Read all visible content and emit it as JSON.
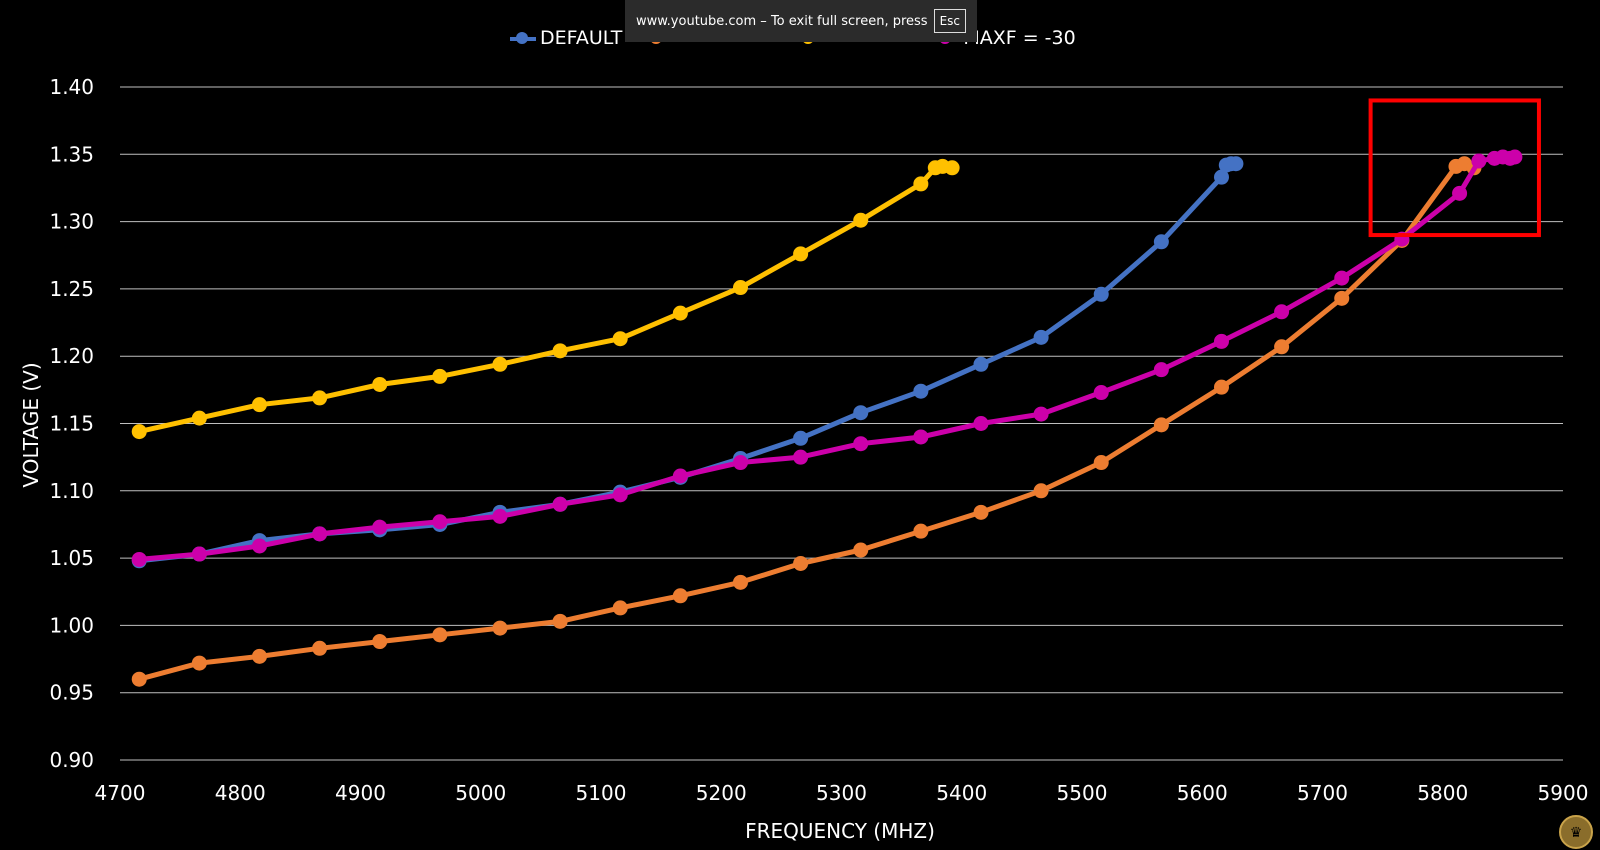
{
  "overlay": {
    "message": "www.youtube.com – To exit full screen, press",
    "key": "Esc"
  },
  "chart_data": {
    "type": "line",
    "title": "",
    "xlabel": "FREQUENCY (MHZ)",
    "ylabel": "VOLTAGE (V)",
    "xlim": [
      4700,
      5900
    ],
    "ylim": [
      0.9,
      1.4
    ],
    "xticks": [
      "4700",
      "4800",
      "4900",
      "5000",
      "5100",
      "5200",
      "5300",
      "5400",
      "5500",
      "5600",
      "5700",
      "5800",
      "5900"
    ],
    "yticks": [
      "0.90",
      "0.95",
      "1.00",
      "1.05",
      "1.10",
      "1.15",
      "1.20",
      "1.25",
      "1.30",
      "1.35",
      "1.40"
    ],
    "grid": "horizontal",
    "legend_position": "top-center",
    "highlight_box": {
      "x": [
        5740,
        5880
      ],
      "y": [
        1.29,
        1.39
      ],
      "color": "#ff0000"
    },
    "series": [
      {
        "name": "DEFAULT",
        "color": "#4472c4",
        "x": [
          4716,
          4766,
          4816,
          4866,
          4916,
          4966,
          5016,
          5066,
          5116,
          5166,
          5216,
          5266,
          5316,
          5366,
          5416,
          5466,
          5516,
          5566,
          5616,
          5620,
          5624,
          5628
        ],
        "y": [
          1.048,
          1.053,
          1.063,
          1.068,
          1.071,
          1.075,
          1.084,
          1.09,
          1.099,
          1.11,
          1.124,
          1.139,
          1.158,
          1.174,
          1.194,
          1.214,
          1.246,
          1.285,
          1.333,
          1.342,
          1.343,
          1.343
        ]
      },
      {
        "name": "",
        "color": "#ed7d31",
        "x": [
          4716,
          4766,
          4816,
          4866,
          4916,
          4966,
          5016,
          5066,
          5116,
          5166,
          5216,
          5266,
          5316,
          5366,
          5416,
          5466,
          5516,
          5566,
          5616,
          5666,
          5716,
          5766,
          5811,
          5818,
          5826
        ],
        "y": [
          0.96,
          0.972,
          0.977,
          0.983,
          0.988,
          0.993,
          0.998,
          1.003,
          1.013,
          1.022,
          1.032,
          1.046,
          1.056,
          1.07,
          1.084,
          1.1,
          1.121,
          1.149,
          1.177,
          1.207,
          1.243,
          1.286,
          1.341,
          1.343,
          1.34
        ]
      },
      {
        "name": "",
        "color": "#ffc000",
        "x": [
          4716,
          4766,
          4816,
          4866,
          4916,
          4966,
          5016,
          5066,
          5116,
          5166,
          5216,
          5266,
          5316,
          5366,
          5378,
          5384,
          5392
        ],
        "y": [
          1.144,
          1.154,
          1.164,
          1.169,
          1.179,
          1.185,
          1.194,
          1.204,
          1.213,
          1.232,
          1.251,
          1.276,
          1.301,
          1.328,
          1.34,
          1.341,
          1.34
        ]
      },
      {
        "name": "",
        "label_suffix": "MAXF = -30",
        "color": "#cc00aa",
        "x": [
          4716,
          4766,
          4816,
          4866,
          4916,
          4966,
          5016,
          5066,
          5116,
          5166,
          5216,
          5266,
          5316,
          5366,
          5416,
          5466,
          5516,
          5566,
          5616,
          5666,
          5716,
          5766,
          5814,
          5830,
          5843,
          5850,
          5856,
          5860
        ],
        "y": [
          1.049,
          1.053,
          1.059,
          1.068,
          1.073,
          1.077,
          1.081,
          1.09,
          1.097,
          1.111,
          1.121,
          1.125,
          1.135,
          1.14,
          1.15,
          1.157,
          1.173,
          1.19,
          1.211,
          1.233,
          1.258,
          1.287,
          1.321,
          1.345,
          1.347,
          1.348,
          1.347,
          1.348
        ]
      }
    ]
  },
  "legend": {
    "items": [
      "DEFAULT",
      "",
      "",
      "MAXF = -30"
    ]
  }
}
